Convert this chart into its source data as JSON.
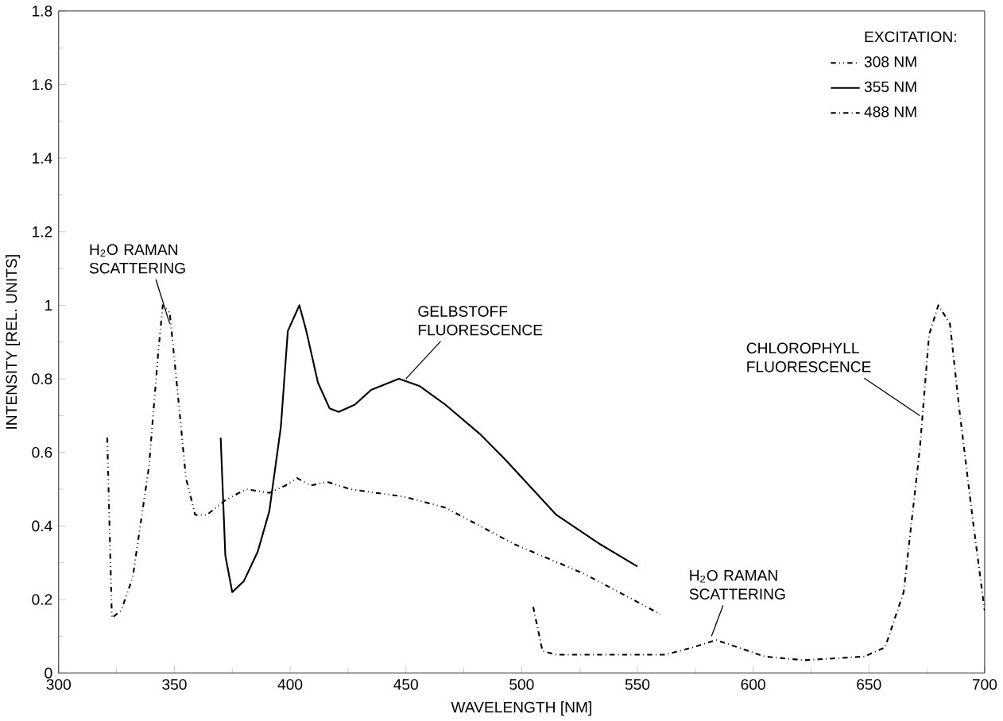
{
  "chart_data": {
    "type": "line",
    "xlabel": "WAVELENGTH [NM]",
    "ylabel": "INTENSITY [REL. UNITS]",
    "legend_title": "EXCITATION:",
    "legend": "top right",
    "grid": false,
    "xlim": [
      300,
      700
    ],
    "xticks": [
      300,
      350,
      400,
      450,
      500,
      550,
      600,
      650,
      700
    ],
    "ylim": [
      0,
      1.8
    ],
    "yticks": [
      0,
      0.2,
      0.4,
      0.6,
      0.8,
      1,
      1.2,
      1.4,
      1.6,
      1.8
    ],
    "series": [
      {
        "name": "308 NM",
        "color": "#000000",
        "line_style": "dotted",
        "x": [
          321,
          323,
          327,
          332,
          339,
          343,
          345,
          348,
          351,
          355,
          359,
          364,
          372,
          381,
          391,
          398,
          403,
          409,
          416,
          426,
          437,
          449,
          467,
          482,
          497,
          512,
          527,
          545,
          560
        ],
        "values": [
          0.64,
          0.15,
          0.17,
          0.26,
          0.56,
          0.87,
          1.0,
          0.98,
          0.79,
          0.53,
          0.43,
          0.43,
          0.47,
          0.5,
          0.49,
          0.51,
          0.53,
          0.51,
          0.52,
          0.5,
          0.49,
          0.48,
          0.45,
          0.4,
          0.35,
          0.31,
          0.27,
          0.21,
          0.16
        ]
      },
      {
        "name": "355 NM",
        "color": "#000000",
        "line_style": "solid",
        "x": [
          370,
          372,
          375,
          380,
          386,
          391,
          396,
          399,
          404,
          407,
          412,
          417,
          421,
          428,
          435,
          447,
          456,
          467,
          482,
          493,
          515,
          534,
          550
        ],
        "values": [
          0.64,
          0.32,
          0.22,
          0.25,
          0.33,
          0.44,
          0.67,
          0.93,
          1.0,
          0.93,
          0.79,
          0.72,
          0.71,
          0.73,
          0.77,
          0.8,
          0.78,
          0.73,
          0.65,
          0.58,
          0.43,
          0.35,
          0.29
        ]
      },
      {
        "name": "488 NM",
        "color": "#000000",
        "line_style": "dashed",
        "x": [
          505,
          509,
          515,
          539,
          562,
          574,
          584,
          591,
          605,
          622,
          648,
          657,
          665,
          672,
          676,
          680,
          685,
          689,
          695,
          700
        ],
        "values": [
          0.18,
          0.06,
          0.05,
          0.05,
          0.05,
          0.07,
          0.09,
          0.075,
          0.045,
          0.035,
          0.045,
          0.07,
          0.22,
          0.61,
          0.92,
          1.0,
          0.95,
          0.72,
          0.41,
          0.17
        ]
      }
    ],
    "annotations": [
      {
        "text": "H$_{2}$O RAMAN SCATTERING",
        "x": 348,
        "y": 0.95
      },
      {
        "text": "GELBSTOFF FLUORESCENCE",
        "x": 450,
        "y": 0.8
      },
      {
        "text": "CHLOROPHYLL FLUORESCENCE",
        "x": 672,
        "y": 0.7
      },
      {
        "text": "H$_{2}$O RAMAN SCATTERING",
        "x": 582,
        "y": 0.1
      }
    ]
  }
}
